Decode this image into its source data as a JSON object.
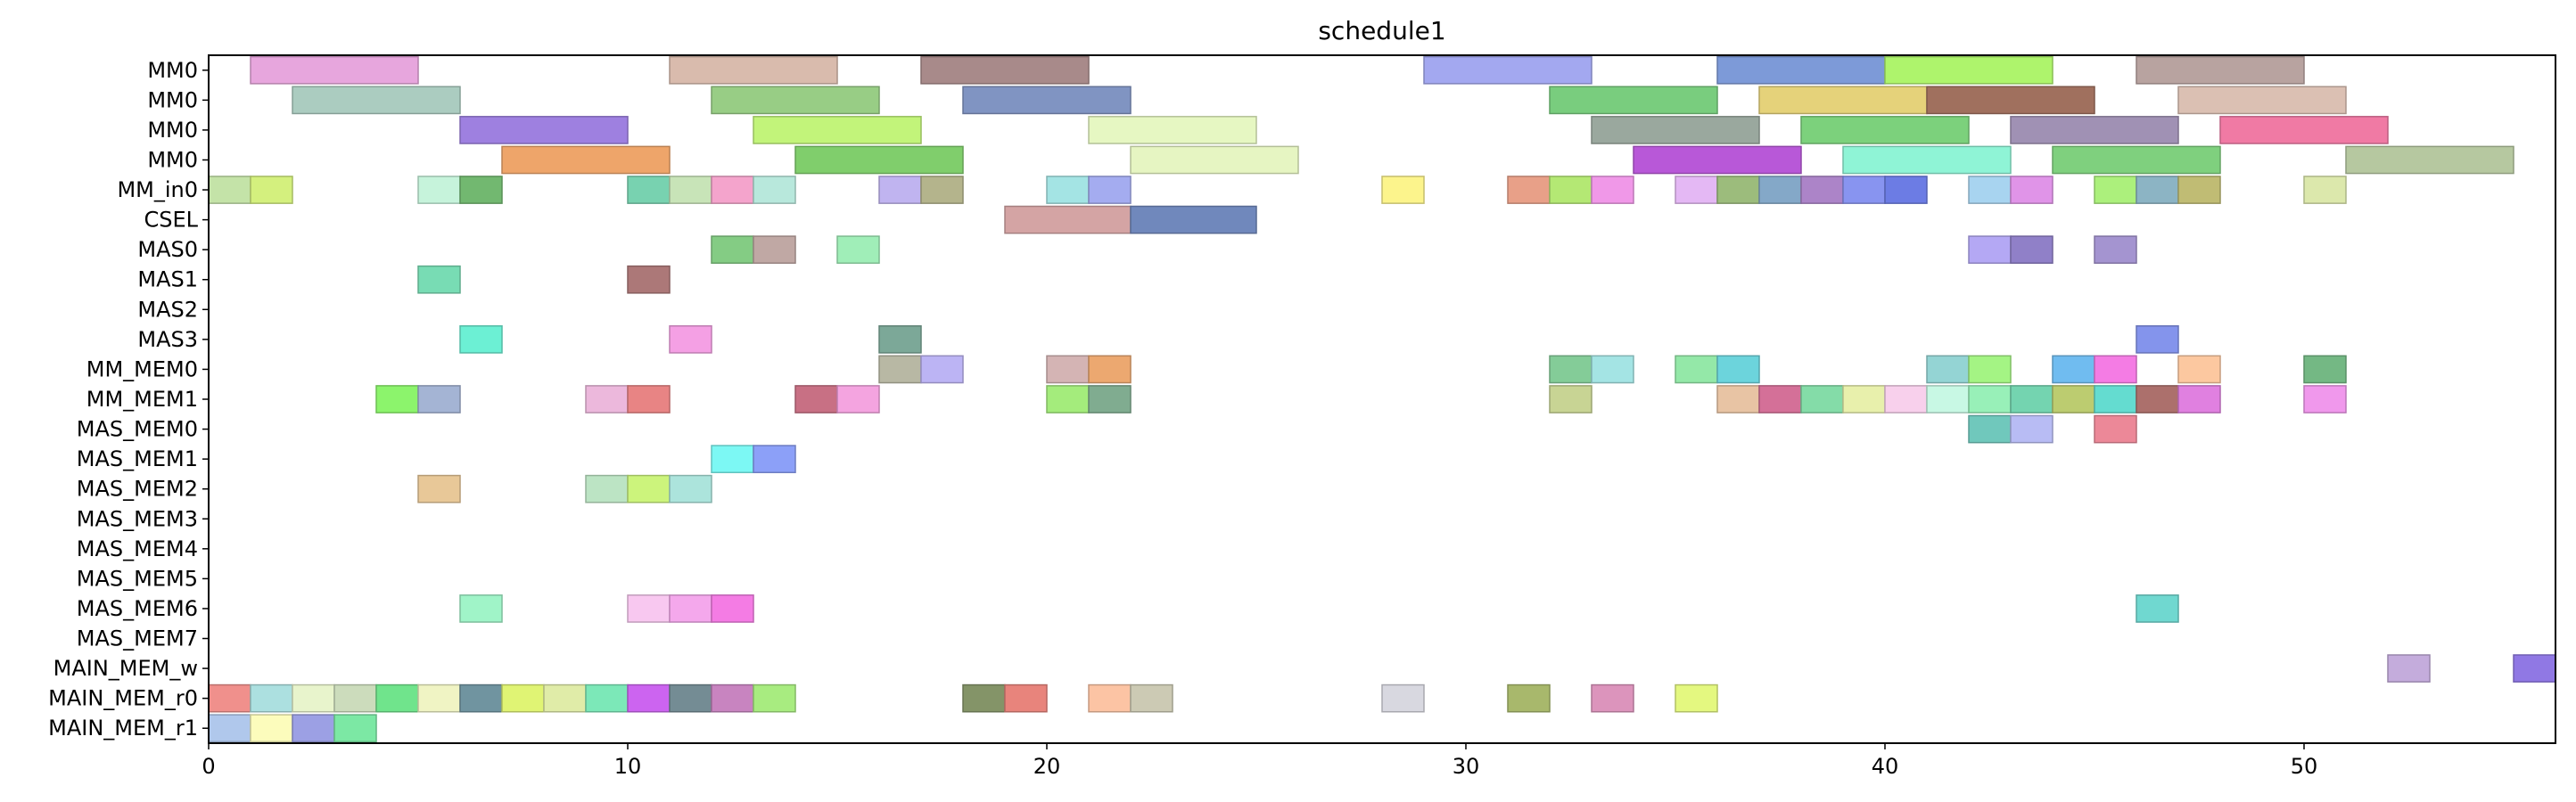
{
  "chart_data": {
    "type": "gantt",
    "title": "schedule1",
    "xlabel": "",
    "ylabel": "",
    "xlim": [
      0,
      56
    ],
    "x_ticks": [
      0,
      10,
      20,
      30,
      40,
      50
    ],
    "grid": false,
    "rows": [
      "MM0",
      "MM0",
      "MM0",
      "MM0",
      "MM_in0",
      "CSEL",
      "MAS0",
      "MAS1",
      "MAS2",
      "MAS3",
      "MM_MEM0",
      "MM_MEM1",
      "MAS_MEM0",
      "MAS_MEM1",
      "MAS_MEM2",
      "MAS_MEM3",
      "MAS_MEM4",
      "MAS_MEM5",
      "MAS_MEM6",
      "MAS_MEM7",
      "MAIN_MEM_w",
      "MAIN_MEM_r0",
      "MAIN_MEM_r1"
    ],
    "tasks": [
      {
        "row": 0,
        "start": 1,
        "end": 5,
        "color": "#e7a6dd"
      },
      {
        "row": 0,
        "start": 11,
        "end": 15,
        "color": "#d9bbad"
      },
      {
        "row": 0,
        "start": 17,
        "end": 21,
        "color": "#a88a8a"
      },
      {
        "row": 0,
        "start": 29,
        "end": 33,
        "color": "#a3a8f0"
      },
      {
        "row": 0,
        "start": 36,
        "end": 40,
        "color": "#7d9ad8"
      },
      {
        "row": 0,
        "start": 40,
        "end": 44,
        "color": "#aef46c"
      },
      {
        "row": 0,
        "start": 46,
        "end": 50,
        "color": "#b8a3a0"
      },
      {
        "row": 1,
        "start": 2,
        "end": 6,
        "color": "#abccc0"
      },
      {
        "row": 1,
        "start": 12,
        "end": 16,
        "color": "#98cd85"
      },
      {
        "row": 1,
        "start": 18,
        "end": 22,
        "color": "#8094c2"
      },
      {
        "row": 1,
        "start": 32,
        "end": 36,
        "color": "#79cd7e"
      },
      {
        "row": 1,
        "start": 37,
        "end": 41,
        "color": "#e5d27a"
      },
      {
        "row": 1,
        "start": 41,
        "end": 45,
        "color": "#a0705e"
      },
      {
        "row": 1,
        "start": 47,
        "end": 51,
        "color": "#dbc0b3"
      },
      {
        "row": 2,
        "start": 6,
        "end": 10,
        "color": "#9e80e0"
      },
      {
        "row": 2,
        "start": 13,
        "end": 17,
        "color": "#c2f47a"
      },
      {
        "row": 2,
        "start": 21,
        "end": 25,
        "color": "#e6f7c2"
      },
      {
        "row": 2,
        "start": 33,
        "end": 37,
        "color": "#9aa89e"
      },
      {
        "row": 2,
        "start": 38,
        "end": 42,
        "color": "#7cd17c"
      },
      {
        "row": 2,
        "start": 43,
        "end": 47,
        "color": "#a091b4"
      },
      {
        "row": 2,
        "start": 48,
        "end": 52,
        "color": "#f07aa4"
      },
      {
        "row": 3,
        "start": 7,
        "end": 11,
        "color": "#eea56a"
      },
      {
        "row": 3,
        "start": 14,
        "end": 18,
        "color": "#80ce6c"
      },
      {
        "row": 3,
        "start": 22,
        "end": 26,
        "color": "#e6f5c2"
      },
      {
        "row": 3,
        "start": 34,
        "end": 38,
        "color": "#b858d8"
      },
      {
        "row": 3,
        "start": 39,
        "end": 43,
        "color": "#8ff4d6"
      },
      {
        "row": 3,
        "start": 44,
        "end": 48,
        "color": "#7fd07e"
      },
      {
        "row": 3,
        "start": 51,
        "end": 55,
        "color": "#b6c8a0"
      },
      {
        "row": 4,
        "start": 0,
        "end": 1,
        "color": "#c4e3a8"
      },
      {
        "row": 4,
        "start": 1,
        "end": 2,
        "color": "#d4f07e"
      },
      {
        "row": 4,
        "start": 5,
        "end": 6,
        "color": "#c6f3db"
      },
      {
        "row": 4,
        "start": 6,
        "end": 7,
        "color": "#72b870"
      },
      {
        "row": 4,
        "start": 10,
        "end": 11,
        "color": "#78d2b0"
      },
      {
        "row": 4,
        "start": 11,
        "end": 12,
        "color": "#c8e4b8"
      },
      {
        "row": 4,
        "start": 12,
        "end": 13,
        "color": "#f4a4cc"
      },
      {
        "row": 4,
        "start": 13,
        "end": 14,
        "color": "#b8e8dc"
      },
      {
        "row": 4,
        "start": 16,
        "end": 17,
        "color": "#c0b4f0"
      },
      {
        "row": 4,
        "start": 17,
        "end": 18,
        "color": "#b4b48c"
      },
      {
        "row": 4,
        "start": 20,
        "end": 21,
        "color": "#a4e4e4"
      },
      {
        "row": 4,
        "start": 21,
        "end": 22,
        "color": "#a4acf0"
      },
      {
        "row": 4,
        "start": 28,
        "end": 29,
        "color": "#fcf48c"
      },
      {
        "row": 4,
        "start": 31,
        "end": 32,
        "color": "#e8a088"
      },
      {
        "row": 4,
        "start": 32,
        "end": 33,
        "color": "#b4e874"
      },
      {
        "row": 4,
        "start": 33,
        "end": 34,
        "color": "#f098e8"
      },
      {
        "row": 4,
        "start": 35,
        "end": 36,
        "color": "#e4b8f4"
      },
      {
        "row": 4,
        "start": 36,
        "end": 37,
        "color": "#9cbc7c"
      },
      {
        "row": 4,
        "start": 37,
        "end": 38,
        "color": "#84a8c8"
      },
      {
        "row": 4,
        "start": 38,
        "end": 39,
        "color": "#ac84c8"
      },
      {
        "row": 4,
        "start": 39,
        "end": 40,
        "color": "#8894f0"
      },
      {
        "row": 4,
        "start": 40,
        "end": 41,
        "color": "#6c7ce4"
      },
      {
        "row": 4,
        "start": 42,
        "end": 43,
        "color": "#a8d4f0"
      },
      {
        "row": 4,
        "start": 43,
        "end": 44,
        "color": "#e094e8"
      },
      {
        "row": 4,
        "start": 45,
        "end": 46,
        "color": "#acf07c"
      },
      {
        "row": 4,
        "start": 46,
        "end": 47,
        "color": "#8cb4c4"
      },
      {
        "row": 4,
        "start": 47,
        "end": 48,
        "color": "#c0bc74"
      },
      {
        "row": 4,
        "start": 50,
        "end": 51,
        "color": "#dce8ac"
      },
      {
        "row": 5,
        "start": 19,
        "end": 22,
        "color": "#d4a4a4"
      },
      {
        "row": 5,
        "start": 22,
        "end": 25,
        "color": "#7088bc"
      },
      {
        "row": 6,
        "start": 12,
        "end": 13,
        "color": "#84cc84"
      },
      {
        "row": 6,
        "start": 13,
        "end": 14,
        "color": "#c0a8a4"
      },
      {
        "row": 6,
        "start": 15,
        "end": 16,
        "color": "#a0eeb8"
      },
      {
        "row": 6,
        "start": 42,
        "end": 43,
        "color": "#b4a8f4"
      },
      {
        "row": 6,
        "start": 43,
        "end": 44,
        "color": "#9080c8"
      },
      {
        "row": 6,
        "start": 45,
        "end": 46,
        "color": "#a494d0"
      },
      {
        "row": 7,
        "start": 5,
        "end": 6,
        "color": "#78dcb4"
      },
      {
        "row": 7,
        "start": 10,
        "end": 11,
        "color": "#ac7878"
      },
      {
        "row": 9,
        "start": 6,
        "end": 7,
        "color": "#6cf0d4"
      },
      {
        "row": 9,
        "start": 11,
        "end": 12,
        "color": "#f4a0e4"
      },
      {
        "row": 9,
        "start": 16,
        "end": 17,
        "color": "#7ca898"
      },
      {
        "row": 9,
        "start": 46,
        "end": 47,
        "color": "#8494ec"
      },
      {
        "row": 10,
        "start": 16,
        "end": 17,
        "color": "#b8b8a4"
      },
      {
        "row": 10,
        "start": 17,
        "end": 18,
        "color": "#bcb4f4"
      },
      {
        "row": 10,
        "start": 20,
        "end": 21,
        "color": "#d4b4b4"
      },
      {
        "row": 10,
        "start": 21,
        "end": 22,
        "color": "#eca870"
      },
      {
        "row": 10,
        "start": 32,
        "end": 33,
        "color": "#84cc98"
      },
      {
        "row": 10,
        "start": 33,
        "end": 34,
        "color": "#a4e4e4"
      },
      {
        "row": 10,
        "start": 35,
        "end": 36,
        "color": "#94e8a8"
      },
      {
        "row": 10,
        "start": 36,
        "end": 37,
        "color": "#6cd4dc"
      },
      {
        "row": 10,
        "start": 41,
        "end": 42,
        "color": "#94d4d4"
      },
      {
        "row": 10,
        "start": 42,
        "end": 43,
        "color": "#a4f484"
      },
      {
        "row": 10,
        "start": 44,
        "end": 45,
        "color": "#70bcf0"
      },
      {
        "row": 10,
        "start": 45,
        "end": 46,
        "color": "#f47ce4"
      },
      {
        "row": 10,
        "start": 47,
        "end": 48,
        "color": "#fcc8a0"
      },
      {
        "row": 10,
        "start": 50,
        "end": 51,
        "color": "#74b884"
      },
      {
        "row": 11,
        "start": 4,
        "end": 5,
        "color": "#8cf46c"
      },
      {
        "row": 11,
        "start": 5,
        "end": 6,
        "color": "#a4b4d4"
      },
      {
        "row": 11,
        "start": 9,
        "end": 10,
        "color": "#ecb8dc"
      },
      {
        "row": 11,
        "start": 10,
        "end": 11,
        "color": "#e88484"
      },
      {
        "row": 11,
        "start": 14,
        "end": 15,
        "color": "#c87084"
      },
      {
        "row": 11,
        "start": 15,
        "end": 16,
        "color": "#f4a4e0"
      },
      {
        "row": 11,
        "start": 20,
        "end": 21,
        "color": "#a4ec7c"
      },
      {
        "row": 11,
        "start": 21,
        "end": 22,
        "color": "#80ac90"
      },
      {
        "row": 11,
        "start": 32,
        "end": 33,
        "color": "#c8d494"
      },
      {
        "row": 11,
        "start": 36,
        "end": 37,
        "color": "#e8c4a4"
      },
      {
        "row": 11,
        "start": 37,
        "end": 38,
        "color": "#d47098"
      },
      {
        "row": 11,
        "start": 38,
        "end": 39,
        "color": "#84dca8"
      },
      {
        "row": 11,
        "start": 39,
        "end": 40,
        "color": "#e8f0ac"
      },
      {
        "row": 11,
        "start": 40,
        "end": 41,
        "color": "#f8d0ec"
      },
      {
        "row": 11,
        "start": 41,
        "end": 42,
        "color": "#c8f8e4"
      },
      {
        "row": 11,
        "start": 42,
        "end": 43,
        "color": "#98f0b8"
      },
      {
        "row": 11,
        "start": 43,
        "end": 44,
        "color": "#74d4b0"
      },
      {
        "row": 11,
        "start": 44,
        "end": 45,
        "color": "#bccc70"
      },
      {
        "row": 11,
        "start": 45,
        "end": 46,
        "color": "#64dcd0"
      },
      {
        "row": 11,
        "start": 46,
        "end": 47,
        "color": "#ac706c"
      },
      {
        "row": 11,
        "start": 47,
        "end": 48,
        "color": "#e080e0"
      },
      {
        "row": 11,
        "start": 50,
        "end": 51,
        "color": "#f098ec"
      },
      {
        "row": 12,
        "start": 42,
        "end": 43,
        "color": "#70c8bc"
      },
      {
        "row": 12,
        "start": 43,
        "end": 44,
        "color": "#b8bcf4"
      },
      {
        "row": 12,
        "start": 45,
        "end": 46,
        "color": "#ec8898"
      },
      {
        "row": 13,
        "start": 12,
        "end": 13,
        "color": "#7cf8f4"
      },
      {
        "row": 13,
        "start": 13,
        "end": 14,
        "color": "#8ca0f8"
      },
      {
        "row": 14,
        "start": 5,
        "end": 6,
        "color": "#e8c898"
      },
      {
        "row": 14,
        "start": 9,
        "end": 10,
        "color": "#bce4c4"
      },
      {
        "row": 14,
        "start": 10,
        "end": 11,
        "color": "#ccf47c"
      },
      {
        "row": 14,
        "start": 11,
        "end": 12,
        "color": "#ace4dc"
      },
      {
        "row": 18,
        "start": 6,
        "end": 7,
        "color": "#a0f4c8"
      },
      {
        "row": 18,
        "start": 10,
        "end": 11,
        "color": "#f8c8f0"
      },
      {
        "row": 18,
        "start": 11,
        "end": 12,
        "color": "#f4a8ec"
      },
      {
        "row": 18,
        "start": 12,
        "end": 13,
        "color": "#f47ce4"
      },
      {
        "row": 18,
        "start": 46,
        "end": 47,
        "color": "#70d8d0"
      },
      {
        "row": 20,
        "start": 52,
        "end": 53,
        "color": "#c4acdc"
      },
      {
        "row": 20,
        "start": 55,
        "end": 56,
        "color": "#9078e4"
      },
      {
        "row": 21,
        "start": 0,
        "end": 1,
        "color": "#f0908c"
      },
      {
        "row": 21,
        "start": 1,
        "end": 2,
        "color": "#ace0e0"
      },
      {
        "row": 21,
        "start": 2,
        "end": 3,
        "color": "#e8f4cc"
      },
      {
        "row": 21,
        "start": 3,
        "end": 4,
        "color": "#ccdcbc"
      },
      {
        "row": 21,
        "start": 4,
        "end": 5,
        "color": "#70e48c"
      },
      {
        "row": 21,
        "start": 5,
        "end": 6,
        "color": "#f0f4c4"
      },
      {
        "row": 21,
        "start": 6,
        "end": 7,
        "color": "#7094a0"
      },
      {
        "row": 21,
        "start": 7,
        "end": 8,
        "color": "#e0f474"
      },
      {
        "row": 21,
        "start": 8,
        "end": 9,
        "color": "#e0eca8"
      },
      {
        "row": 21,
        "start": 9,
        "end": 10,
        "color": "#7ce8b8"
      },
      {
        "row": 21,
        "start": 10,
        "end": 11,
        "color": "#cc64f0"
      },
      {
        "row": 21,
        "start": 11,
        "end": 12,
        "color": "#748c94"
      },
      {
        "row": 21,
        "start": 12,
        "end": 13,
        "color": "#c884c0"
      },
      {
        "row": 21,
        "start": 13,
        "end": 14,
        "color": "#a8ec80"
      },
      {
        "row": 21,
        "start": 18,
        "end": 19,
        "color": "#849468"
      },
      {
        "row": 21,
        "start": 19,
        "end": 20,
        "color": "#e8847c"
      },
      {
        "row": 21,
        "start": 21,
        "end": 22,
        "color": "#fcc4a4"
      },
      {
        "row": 21,
        "start": 22,
        "end": 23,
        "color": "#cccab4"
      },
      {
        "row": 21,
        "start": 28,
        "end": 29,
        "color": "#d8d8e0"
      },
      {
        "row": 21,
        "start": 31,
        "end": 32,
        "color": "#a8b86c"
      },
      {
        "row": 21,
        "start": 33,
        "end": 34,
        "color": "#dc94bc"
      },
      {
        "row": 21,
        "start": 35,
        "end": 36,
        "color": "#e4f880"
      },
      {
        "row": 22,
        "start": 0,
        "end": 1,
        "color": "#b0c8ec"
      },
      {
        "row": 22,
        "start": 1,
        "end": 2,
        "color": "#fcfcbc"
      },
      {
        "row": 22,
        "start": 2,
        "end": 3,
        "color": "#9ca0e4"
      },
      {
        "row": 22,
        "start": 3,
        "end": 4,
        "color": "#7ce8a4"
      }
    ]
  }
}
